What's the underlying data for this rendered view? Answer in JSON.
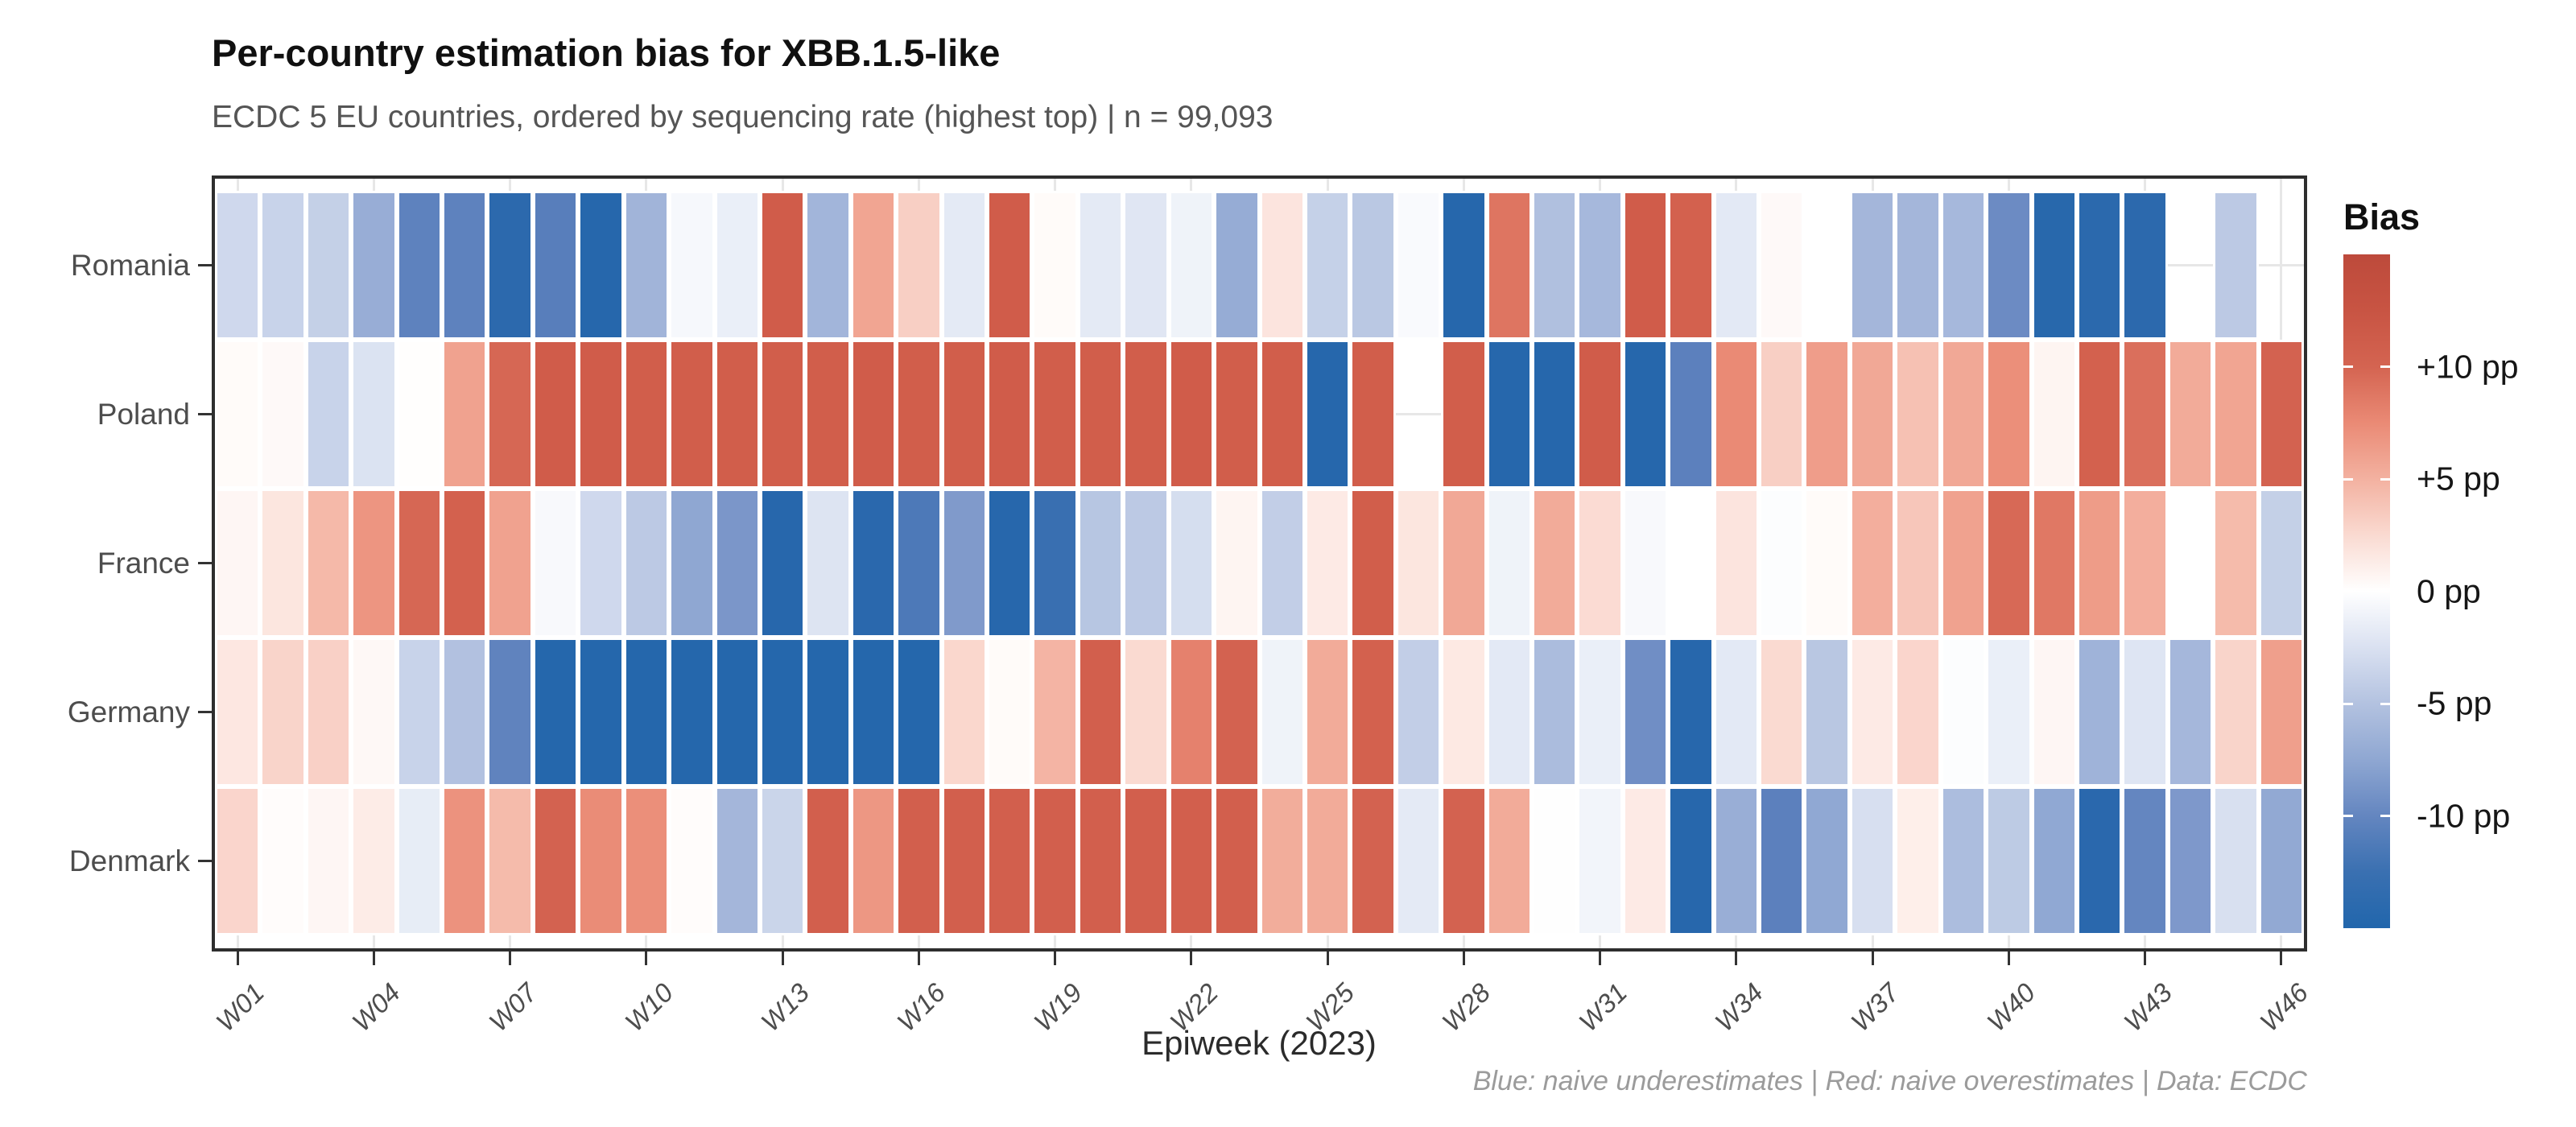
{
  "title": "Per-country estimation bias for XBB.1.5-like",
  "subtitle": "ECDC 5 EU countries, ordered by sequencing rate (highest top) | n = 99,093",
  "caption": "Blue: naive underestimates | Red: naive overestimates | Data: ECDC",
  "axes": {
    "x_title": "Epiweek (2023)",
    "x_tick_labels": [
      "W01",
      "W04",
      "W07",
      "W10",
      "W13",
      "W16",
      "W19",
      "W22",
      "W25",
      "W28",
      "W31",
      "W34",
      "W37",
      "W40",
      "W43",
      "W46"
    ],
    "y_labels": [
      "Romania",
      "Poland",
      "France",
      "Germany",
      "Denmark"
    ]
  },
  "legend": {
    "title": "Bias",
    "ticks": [
      {
        "label": "+10 pp",
        "value": 10
      },
      {
        "label": "+5 pp",
        "value": 5
      },
      {
        "label": "0 pp",
        "value": 0
      },
      {
        "label": "-5 pp",
        "value": -5
      },
      {
        "label": "-10 pp",
        "value": -10
      }
    ]
  },
  "colors": {
    "panel_border": "#2e2e2e",
    "grid": "#e7e7e7",
    "tile_border": "#ffffff",
    "axis_text": "#4d4d4d",
    "title_text": "#101010",
    "subtitle_text": "#555555",
    "caption_text": "#9b9b9b",
    "positive_anchors": [
      [
        0,
        "#ffffff"
      ],
      [
        1.5,
        "#fde9e3"
      ],
      [
        3,
        "#f9d2c8"
      ],
      [
        4.5,
        "#f5b9a9"
      ],
      [
        6,
        "#f0a28f"
      ],
      [
        7.5,
        "#ea8a75"
      ],
      [
        9,
        "#dd7460"
      ],
      [
        10.5,
        "#d05c4a"
      ],
      [
        15,
        "#bd4a3b"
      ]
    ],
    "negative_anchors": [
      [
        0,
        "#ffffff"
      ],
      [
        1.5,
        "#e9eef7"
      ],
      [
        3,
        "#d2dbee"
      ],
      [
        4.5,
        "#bac8e3"
      ],
      [
        6,
        "#a5b7db"
      ],
      [
        7.5,
        "#8fa7d2"
      ],
      [
        9,
        "#7893c8"
      ],
      [
        10.5,
        "#5a7fbc"
      ],
      [
        12.5,
        "#3a70b1"
      ],
      [
        14,
        "#2767ac"
      ],
      [
        15,
        "#2166ac"
      ]
    ]
  },
  "chart_data": {
    "type": "heatmap",
    "title": "Per-country estimation bias for XBB.1.5-like",
    "xlabel": "Epiweek (2023)",
    "ylabel": "",
    "legend_title": "Bias",
    "unit": "pp",
    "value_domain": [
      -15,
      15
    ],
    "na_policy": "null = missing week (no tile, gridline visible)",
    "x": [
      "W01",
      "W02",
      "W03",
      "W04",
      "W05",
      "W06",
      "W07",
      "W08",
      "W09",
      "W10",
      "W11",
      "W12",
      "W13",
      "W14",
      "W15",
      "W16",
      "W17",
      "W18",
      "W19",
      "W20",
      "W21",
      "W22",
      "W23",
      "W24",
      "W25",
      "W26",
      "W27",
      "W28",
      "W29",
      "W30",
      "W31",
      "W32",
      "W33",
      "W34",
      "W35",
      "W36",
      "W37",
      "W38",
      "W39",
      "W40",
      "W41",
      "W42",
      "W43",
      "W44",
      "W45",
      "W46"
    ],
    "series": [
      {
        "name": "Romania",
        "values": [
          -3.2,
          -3.6,
          -3.9,
          -6.9,
          -10.3,
          -10.3,
          -13.6,
          -10.6,
          -14.2,
          -6.3,
          -0.6,
          -1.4,
          10.6,
          -6.2,
          5.8,
          3.2,
          -1.8,
          10.6,
          0.3,
          -1.8,
          -2.1,
          -1.1,
          -7.0,
          1.8,
          -3.8,
          -4.5,
          -0.4,
          -14.1,
          8.9,
          -5.2,
          -5.9,
          10.5,
          10.2,
          -1.9,
          0.4,
          0,
          -6.1,
          -6.1,
          -5.9,
          -9.6,
          -13.9,
          -13.7,
          -13.6,
          null,
          -4.4,
          null
        ]
      },
      {
        "name": "Poland",
        "values": [
          0.3,
          0.4,
          -3.6,
          -2.4,
          0.1,
          6.0,
          9.8,
          10.5,
          10.5,
          10.4,
          10.4,
          10.4,
          10.4,
          10.4,
          10.5,
          10.4,
          10.4,
          10.5,
          10.4,
          10.4,
          10.4,
          10.5,
          10.4,
          10.4,
          -14.1,
          10.4,
          null,
          10.4,
          -14.1,
          -14.1,
          10.6,
          -14.1,
          -10.4,
          7.5,
          3.2,
          6.3,
          5.6,
          4.0,
          5.6,
          7.2,
          0.7,
          10.2,
          9.3,
          5.4,
          5.8,
          10.1
        ]
      },
      {
        "name": "France",
        "values": [
          0.6,
          1.7,
          4.5,
          6.8,
          9.8,
          10.2,
          6.0,
          -0.5,
          -3.2,
          -4.4,
          -7.5,
          -8.8,
          -14.0,
          -2.3,
          -13.8,
          -11.3,
          -8.5,
          -14.0,
          -12.6,
          -4.7,
          -4.4,
          -2.8,
          0.7,
          -4.0,
          1.4,
          10.4,
          1.7,
          5.6,
          -1.1,
          5.4,
          2.4,
          -0.5,
          0,
          1.8,
          -0.2,
          0.3,
          5.2,
          3.7,
          6.0,
          9.7,
          8.7,
          6.4,
          5.2,
          0,
          4.4,
          -3.9
        ]
      },
      {
        "name": "Germany",
        "values": [
          1.6,
          2.9,
          3.1,
          0.5,
          -3.6,
          -5.1,
          -10.2,
          -14.3,
          -14.3,
          -14.3,
          -14.3,
          -14.3,
          -14.3,
          -14.3,
          -14.3,
          -14.3,
          2.7,
          0.3,
          4.8,
          10.3,
          2.5,
          8.1,
          10.1,
          -1.1,
          5.4,
          10.2,
          -4.0,
          1.5,
          -1.9,
          -5.6,
          -1.4,
          -9.4,
          -14.0,
          -1.9,
          2.5,
          -4.6,
          1.4,
          2.8,
          -0.2,
          -1.4,
          0.6,
          -6.4,
          -2.2,
          -6.0,
          2.9,
          6.2
        ]
      },
      {
        "name": "Denmark",
        "values": [
          2.8,
          0.2,
          0.6,
          1.3,
          -1.6,
          7.0,
          4.4,
          10.1,
          7.4,
          7.2,
          0.2,
          -6.1,
          -3.5,
          10.3,
          6.7,
          10.3,
          10.3,
          10.3,
          10.3,
          10.3,
          10.3,
          10.3,
          10.3,
          5.3,
          5.4,
          10.1,
          -1.8,
          10.1,
          5.4,
          -0.1,
          -0.9,
          1.4,
          -14.0,
          -6.8,
          -10.4,
          -7.4,
          -2.7,
          1.1,
          -5.5,
          -4.3,
          -7.4,
          -13.8,
          -10.0,
          -8.6,
          -2.6,
          -7.3
        ]
      }
    ]
  }
}
